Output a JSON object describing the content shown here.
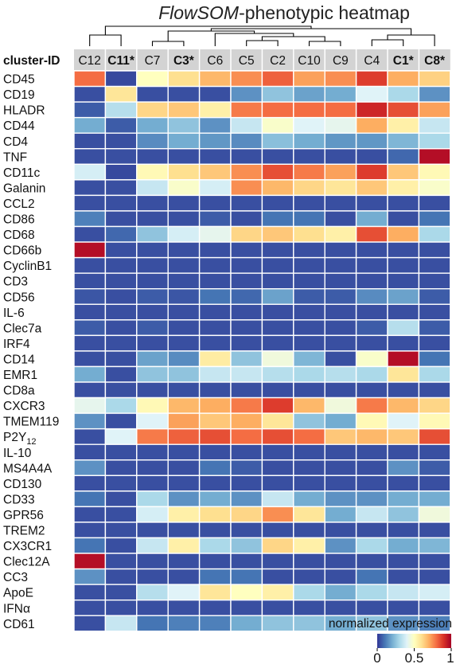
{
  "chart_data": {
    "type": "heatmap",
    "title_italic": "FlowSOM",
    "title_rest": "-phenotypic heatmap",
    "row_header": "cluster-ID",
    "columns": [
      {
        "label": "C12",
        "bold": false
      },
      {
        "label": "C11*",
        "bold": true
      },
      {
        "label": "C7",
        "bold": false
      },
      {
        "label": "C3*",
        "bold": true
      },
      {
        "label": "C6",
        "bold": false
      },
      {
        "label": "C5",
        "bold": false
      },
      {
        "label": "C2",
        "bold": false
      },
      {
        "label": "C10",
        "bold": false
      },
      {
        "label": "C9",
        "bold": false
      },
      {
        "label": "C4",
        "bold": false
      },
      {
        "label": "C1*",
        "bold": true
      },
      {
        "label": "C8*",
        "bold": true
      }
    ],
    "rows": [
      {
        "label": "CD45",
        "values": [
          0.8,
          0.03,
          0.5,
          0.6,
          0.68,
          0.75,
          0.82,
          0.72,
          0.75,
          0.88,
          0.7,
          0.63
        ]
      },
      {
        "label": "CD19",
        "values": [
          0.04,
          0.58,
          0.04,
          0.04,
          0.04,
          0.15,
          0.25,
          0.18,
          0.2,
          0.4,
          0.3,
          0.15
        ]
      },
      {
        "label": "HLADR",
        "values": [
          0.06,
          0.32,
          0.62,
          0.65,
          0.55,
          0.78,
          0.8,
          0.8,
          0.8,
          0.92,
          0.85,
          0.72
        ]
      },
      {
        "label": "CD44",
        "values": [
          0.2,
          0.06,
          0.2,
          0.25,
          0.15,
          0.35,
          0.48,
          0.4,
          0.42,
          0.7,
          0.55,
          0.35
        ]
      },
      {
        "label": "CD4",
        "values": [
          0.04,
          0.04,
          0.14,
          0.2,
          0.16,
          0.14,
          0.24,
          0.2,
          0.16,
          0.16,
          0.22,
          0.3
        ]
      },
      {
        "label": "TNF",
        "values": [
          0.04,
          0.04,
          0.04,
          0.04,
          0.04,
          0.04,
          0.04,
          0.04,
          0.04,
          0.04,
          0.08,
          0.97
        ]
      },
      {
        "label": "CD11c",
        "values": [
          0.38,
          0.03,
          0.52,
          0.6,
          0.65,
          0.75,
          0.85,
          0.78,
          0.72,
          0.88,
          0.65,
          0.52
        ]
      },
      {
        "label": "Galanin",
        "values": [
          0.04,
          0.04,
          0.35,
          0.48,
          0.38,
          0.75,
          0.68,
          0.62,
          0.58,
          0.65,
          0.55,
          0.48
        ]
      },
      {
        "label": "CCL2",
        "values": [
          0.04,
          0.04,
          0.04,
          0.04,
          0.04,
          0.04,
          0.04,
          0.04,
          0.04,
          0.04,
          0.04,
          0.04
        ]
      },
      {
        "label": "CD86",
        "values": [
          0.12,
          0.04,
          0.04,
          0.04,
          0.06,
          0.04,
          0.1,
          0.1,
          0.04,
          0.2,
          0.04,
          0.1
        ]
      },
      {
        "label": "CD68",
        "values": [
          0.04,
          0.08,
          0.25,
          0.38,
          0.42,
          0.62,
          0.65,
          0.6,
          0.55,
          0.85,
          0.7,
          0.3
        ]
      },
      {
        "label": "CD66b",
        "values": [
          0.97,
          0.04,
          0.04,
          0.04,
          0.04,
          0.04,
          0.04,
          0.04,
          0.04,
          0.04,
          0.04,
          0.04
        ]
      },
      {
        "label": "CyclinB1",
        "values": [
          0.04,
          0.04,
          0.04,
          0.04,
          0.04,
          0.04,
          0.04,
          0.04,
          0.04,
          0.04,
          0.04,
          0.04
        ]
      },
      {
        "label": "CD3",
        "values": [
          0.04,
          0.04,
          0.04,
          0.04,
          0.04,
          0.04,
          0.04,
          0.04,
          0.04,
          0.04,
          0.04,
          0.04
        ]
      },
      {
        "label": "CD56",
        "values": [
          0.05,
          0.04,
          0.06,
          0.05,
          0.1,
          0.08,
          0.18,
          0.06,
          0.06,
          0.14,
          0.18,
          0.06
        ]
      },
      {
        "label": "IL-6",
        "values": [
          0.04,
          0.04,
          0.04,
          0.04,
          0.04,
          0.04,
          0.04,
          0.04,
          0.04,
          0.04,
          0.04,
          0.04
        ]
      },
      {
        "label": "Clec7a",
        "values": [
          0.06,
          0.04,
          0.06,
          0.04,
          0.04,
          0.04,
          0.04,
          0.04,
          0.04,
          0.06,
          0.32,
          0.06
        ]
      },
      {
        "label": "IRF4",
        "values": [
          0.04,
          0.04,
          0.04,
          0.04,
          0.04,
          0.04,
          0.04,
          0.04,
          0.04,
          0.04,
          0.04,
          0.04
        ]
      },
      {
        "label": "CD14",
        "values": [
          0.04,
          0.04,
          0.18,
          0.14,
          0.56,
          0.25,
          0.45,
          0.22,
          0.04,
          0.48,
          0.97,
          0.1
        ]
      },
      {
        "label": "EMR1",
        "values": [
          0.2,
          0.04,
          0.25,
          0.25,
          0.35,
          0.35,
          0.32,
          0.3,
          0.32,
          0.3,
          0.58,
          0.3
        ]
      },
      {
        "label": "CD8a",
        "values": [
          0.04,
          0.04,
          0.04,
          0.04,
          0.04,
          0.04,
          0.04,
          0.04,
          0.04,
          0.04,
          0.04,
          0.04
        ]
      },
      {
        "label": "CXCR3",
        "values": [
          0.42,
          0.3,
          0.52,
          0.68,
          0.7,
          0.78,
          0.88,
          0.68,
          0.45,
          0.78,
          0.68,
          0.62
        ]
      },
      {
        "label": "TMEM119",
        "values": [
          0.15,
          0.04,
          0.4,
          0.72,
          0.65,
          0.7,
          0.58,
          0.25,
          0.2,
          0.52,
          0.4,
          0.52
        ]
      },
      {
        "label": "P2Y12",
        "values": [
          0.04,
          0.4,
          0.78,
          0.82,
          0.85,
          0.8,
          0.85,
          0.8,
          0.65,
          0.68,
          0.65,
          0.85
        ]
      },
      {
        "label": "IL-10",
        "values": [
          0.04,
          0.04,
          0.04,
          0.04,
          0.04,
          0.04,
          0.04,
          0.04,
          0.04,
          0.04,
          0.04,
          0.04
        ]
      },
      {
        "label": "MS4A4A",
        "values": [
          0.15,
          0.04,
          0.04,
          0.04,
          0.1,
          0.06,
          0.04,
          0.04,
          0.04,
          0.04,
          0.15,
          0.06
        ]
      },
      {
        "label": "CD130",
        "values": [
          0.04,
          0.04,
          0.04,
          0.04,
          0.04,
          0.04,
          0.04,
          0.04,
          0.04,
          0.04,
          0.04,
          0.04
        ]
      },
      {
        "label": "CD33",
        "values": [
          0.1,
          0.04,
          0.3,
          0.15,
          0.2,
          0.15,
          0.35,
          0.2,
          0.15,
          0.15,
          0.2,
          0.2
        ]
      },
      {
        "label": "GPR56",
        "values": [
          0.04,
          0.04,
          0.38,
          0.55,
          0.6,
          0.62,
          0.75,
          0.58,
          0.2,
          0.35,
          0.25,
          0.45
        ]
      },
      {
        "label": "TREM2",
        "values": [
          0.04,
          0.04,
          0.04,
          0.04,
          0.04,
          0.04,
          0.04,
          0.04,
          0.04,
          0.04,
          0.04,
          0.04
        ]
      },
      {
        "label": "CX3CR1",
        "values": [
          0.1,
          0.04,
          0.35,
          0.55,
          0.3,
          0.25,
          0.62,
          0.55,
          0.15,
          0.3,
          0.2,
          0.22
        ]
      },
      {
        "label": "Clec12A",
        "values": [
          0.97,
          0.04,
          0.04,
          0.04,
          0.04,
          0.04,
          0.04,
          0.04,
          0.04,
          0.04,
          0.04,
          0.04
        ]
      },
      {
        "label": "CC3",
        "values": [
          0.15,
          0.04,
          0.04,
          0.04,
          0.1,
          0.1,
          0.04,
          0.04,
          0.04,
          0.1,
          0.04,
          0.04
        ]
      },
      {
        "label": "ApoE",
        "values": [
          0.04,
          0.04,
          0.32,
          0.4,
          0.58,
          0.5,
          0.55,
          0.3,
          0.2,
          0.3,
          0.35,
          0.38
        ]
      },
      {
        "label": "IFNα",
        "values": [
          0.04,
          0.04,
          0.04,
          0.04,
          0.04,
          0.04,
          0.04,
          0.04,
          0.04,
          0.04,
          0.04,
          0.04
        ]
      },
      {
        "label": "CD61",
        "values": [
          0.04,
          0.35,
          0.1,
          0.12,
          0.12,
          0.2,
          0.25,
          0.25,
          0.2,
          0.25,
          0.15,
          0.12
        ]
      }
    ],
    "legend": {
      "title": "normalized expression",
      "ticks": [
        {
          "value": 0,
          "label": "0"
        },
        {
          "value": 0.5,
          "label": "0.5"
        },
        {
          "value": 1,
          "label": "1"
        }
      ],
      "range": [
        0,
        1
      ]
    },
    "colormap": [
      "#313695",
      "#4575b4",
      "#74add1",
      "#abd9e9",
      "#e0f3f8",
      "#ffffbf",
      "#fee090",
      "#fdae61",
      "#f46d43",
      "#d73027",
      "#a50026"
    ],
    "header_bg": "#d3d3d3"
  }
}
